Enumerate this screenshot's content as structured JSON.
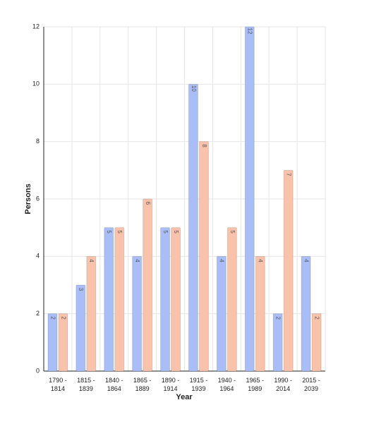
{
  "chart_data": {
    "type": "bar",
    "x_label": "Year",
    "y_label": "Persons",
    "categories": [
      "1790 - 1814",
      "1815 - 1839",
      "1840 - 1864",
      "1865 - 1889",
      "1890 - 1914",
      "1915 - 1939",
      "1940 - 1964",
      "1965 - 1989",
      "1990 - 2014",
      "2015 - 2039"
    ],
    "series": [
      {
        "color": "#a9bdf7",
        "values": [
          2,
          3,
          5,
          4,
          5,
          10,
          4,
          12,
          2,
          4
        ]
      },
      {
        "color": "#f9c2ab",
        "values": [
          2,
          4,
          5,
          6,
          5,
          8,
          5,
          4,
          7,
          2
        ]
      }
    ],
    "ylim": [
      0,
      12
    ],
    "yticks": [
      0,
      2,
      4,
      6,
      8,
      10,
      12
    ],
    "grid": true
  }
}
